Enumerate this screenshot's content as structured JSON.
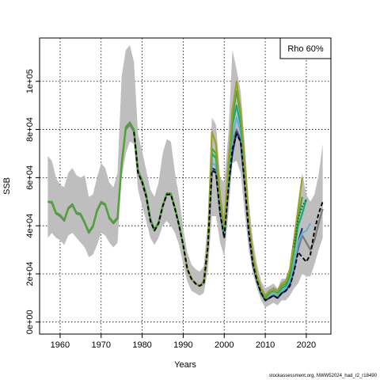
{
  "chart_data": {
    "type": "line",
    "ylabel": "SSB",
    "xlabel": "Years",
    "xlim": [
      1955,
      2026
    ],
    "ylim": [
      -5000,
      118000
    ],
    "x_ticks": [
      1960,
      1970,
      1980,
      1990,
      2000,
      2010,
      2020
    ],
    "y_ticks": [
      {
        "value": 0,
        "label": "0e+00"
      },
      {
        "value": 20000,
        "label": "2e+04"
      },
      {
        "value": 40000,
        "label": "4e+04"
      },
      {
        "value": 60000,
        "label": "6e+04"
      },
      {
        "value": 80000,
        "label": "8e+04"
      },
      {
        "value": 100000,
        "label": "1e+05"
      }
    ],
    "grid": true,
    "legend": {
      "text": "Rho 60%",
      "position": "top-right"
    },
    "confidence_band": {
      "color": "#bebebe",
      "x": [
        1957,
        1958,
        1959,
        1960,
        1961,
        1962,
        1963,
        1964,
        1965,
        1966,
        1967,
        1968,
        1969,
        1970,
        1971,
        1972,
        1973,
        1974,
        1975,
        1976,
        1977,
        1978,
        1979,
        1980,
        1981,
        1982,
        1983,
        1984,
        1985,
        1986,
        1987,
        1988,
        1989,
        1990,
        1991,
        1992,
        1993,
        1994,
        1995,
        1996,
        1997,
        1998,
        1999,
        2000,
        2001,
        2002,
        2003,
        2004,
        2005,
        2006,
        2007,
        2008,
        2009,
        2010,
        2011,
        2012,
        2013,
        2014,
        2015,
        2016,
        2017,
        2018,
        2019,
        2020,
        2021,
        2022,
        2023,
        2024
      ],
      "upper": [
        69000,
        67000,
        60000,
        57000,
        56000,
        62000,
        64000,
        61000,
        60000,
        61000,
        52000,
        53000,
        60000,
        66000,
        64000,
        58000,
        56000,
        62000,
        102000,
        113000,
        115000,
        108000,
        78000,
        71000,
        63000,
        55000,
        52000,
        58000,
        70000,
        76000,
        75000,
        62000,
        52000,
        39000,
        29000,
        24000,
        22000,
        21000,
        23000,
        42000,
        85000,
        82000,
        60000,
        58000,
        78000,
        113000,
        105000,
        96000,
        74000,
        50000,
        34000,
        24000,
        17000,
        14000,
        15000,
        16000,
        14000,
        18000,
        18000,
        23000,
        32000,
        46000,
        62000,
        53000,
        50000,
        53000,
        61000,
        74000
      ],
      "lower": [
        35000,
        37000,
        35000,
        34000,
        32000,
        36000,
        37000,
        35000,
        33000,
        31000,
        27000,
        28000,
        32000,
        37000,
        36000,
        33000,
        31000,
        33000,
        60000,
        70000,
        75000,
        74000,
        55000,
        48000,
        42000,
        35000,
        32000,
        35000,
        40000,
        42000,
        40000,
        37000,
        32000,
        24000,
        17000,
        13000,
        12000,
        11000,
        12000,
        21000,
        44000,
        44000,
        33000,
        27000,
        45000,
        66000,
        67000,
        62000,
        45000,
        30000,
        20000,
        14000,
        9000,
        6000,
        7000,
        8000,
        7000,
        9000,
        9000,
        11000,
        14000,
        16000,
        20000,
        19000,
        19000,
        24000,
        30000,
        35000
      ]
    },
    "series": [
      {
        "color": "#7a7a7a",
        "style": "solid",
        "x": [
          1957,
          1958,
          1959,
          1960,
          1961,
          1962,
          1963,
          1964,
          1965,
          1966,
          1967,
          1968,
          1969,
          1970,
          1971,
          1972,
          1973,
          1974,
          1975,
          1976,
          1977,
          1978,
          1979,
          1980,
          1981,
          1982,
          1983,
          1984,
          1985,
          1986,
          1987,
          1988,
          1989,
          1990,
          1991,
          1992,
          1993,
          1994,
          1995,
          1996,
          1997,
          1998,
          1999,
          2000,
          2001,
          2002,
          2003,
          2004,
          2005,
          2006,
          2007,
          2008,
          2009,
          2010,
          2011,
          2012,
          2013,
          2014,
          2015,
          2016,
          2017,
          2018,
          2019,
          2020,
          2021,
          2022,
          2023,
          2024
        ],
        "y": [
          50000,
          49500,
          45000,
          44000,
          42000,
          47000,
          48500,
          45000,
          44500,
          41000,
          37000,
          39500,
          46000,
          49500,
          48500,
          43000,
          41000,
          43000,
          65000,
          80000,
          82000,
          79000,
          62000,
          58000,
          52000,
          42000,
          38000,
          41000,
          48000,
          53000,
          53000,
          47000,
          40000,
          32000,
          22000,
          18000,
          16000,
          15000,
          16000,
          31000,
          63000,
          62000,
          45000,
          35000,
          55000,
          75000,
          80000,
          76000,
          57000,
          37000,
          24000,
          17000,
          12000,
          9000,
          10000,
          11000,
          10000,
          12000,
          13000,
          15000,
          21000,
          30000,
          36000,
          33000,
          30000,
          34000,
          41000,
          47000
        ]
      },
      {
        "color": "#1a2f7a",
        "style": "solid",
        "x": [
          1990,
          1991,
          1992,
          1993,
          1994,
          1995,
          1996,
          1997,
          1998,
          1999,
          2000,
          2001,
          2002,
          2003,
          2004,
          2005,
          2006,
          2007,
          2008,
          2009,
          2010,
          2011,
          2012,
          2013,
          2014,
          2015,
          2016,
          2017,
          2018,
          2019
        ],
        "y": [
          32000,
          22000,
          18000,
          16000,
          15000,
          16000,
          31000,
          64000,
          63000,
          46000,
          36000,
          57000,
          70000,
          79000,
          75000,
          58000,
          37000,
          24000,
          17000,
          12000,
          9000,
          10000,
          11000,
          10000,
          12000,
          13000,
          16000,
          23000,
          33000,
          39000
        ]
      },
      {
        "color": "#6ab0d4",
        "style": "solid",
        "x": [
          1990,
          1991,
          1992,
          1993,
          1994,
          1995,
          1996,
          1997,
          1998,
          1999,
          2000,
          2001,
          2002,
          2003,
          2004,
          2005,
          2006,
          2007,
          2008,
          2009,
          2010,
          2011,
          2012,
          2013,
          2014,
          2015,
          2016,
          2017,
          2018,
          2019,
          2020,
          2021
        ],
        "y": [
          32000,
          22000,
          18000,
          16000,
          15000,
          16000,
          31000,
          66000,
          65000,
          47000,
          37000,
          59000,
          77000,
          85000,
          79000,
          60000,
          38000,
          25000,
          18000,
          13000,
          10000,
          11000,
          12000,
          11000,
          13000,
          14000,
          17000,
          24000,
          33000,
          37000,
          38000,
          41000
        ]
      },
      {
        "color": "#1aa87a",
        "style": "solid",
        "x": [
          1990,
          1991,
          1992,
          1993,
          1994,
          1995,
          1996,
          1997,
          1998,
          1999,
          2000,
          2001,
          2002,
          2003,
          2004,
          2005,
          2006,
          2007,
          2008,
          2009,
          2010,
          2011,
          2012,
          2013,
          2014,
          2015,
          2016,
          2017,
          2018,
          2019,
          2020
        ],
        "y": [
          32000,
          22000,
          18000,
          16000,
          15000,
          17000,
          32000,
          70000,
          68000,
          49000,
          38000,
          62000,
          82000,
          90000,
          82000,
          62000,
          40000,
          26000,
          18000,
          13000,
          10000,
          12000,
          13000,
          12000,
          14000,
          15000,
          19000,
          29000,
          40000,
          45000,
          51000
        ]
      },
      {
        "color": "#4aa832",
        "style": "solid",
        "x": [
          1957,
          1958,
          1959,
          1960,
          1961,
          1962,
          1963,
          1964,
          1965,
          1966,
          1967,
          1968,
          1969,
          1970,
          1971,
          1972,
          1973,
          1974,
          1975,
          1976,
          1977,
          1978,
          1979,
          1980,
          1981,
          1982,
          1983,
          1984,
          1985,
          1986,
          1987,
          1988,
          1989,
          1990,
          1991,
          1992,
          1993,
          1994,
          1995,
          1996,
          1997,
          1998,
          1999,
          2000,
          2001,
          2002,
          2003,
          2004,
          2005,
          2006,
          2007,
          2008,
          2009,
          2010,
          2011,
          2012,
          2013,
          2014,
          2015,
          2016,
          2017,
          2018,
          2019
        ],
        "y": [
          50000,
          50000,
          45500,
          44500,
          42500,
          47500,
          49000,
          45500,
          45000,
          41500,
          37500,
          40000,
          46500,
          50000,
          49000,
          43500,
          41500,
          43500,
          66000,
          81000,
          83000,
          80000,
          63000,
          59000,
          53000,
          43000,
          38500,
          41500,
          48500,
          53500,
          53500,
          47500,
          40500,
          32000,
          22000,
          18000,
          16000,
          15000,
          17000,
          32000,
          72000,
          70000,
          50000,
          39000,
          64000,
          85000,
          96000,
          86000,
          64000,
          41000,
          27000,
          18000,
          13000,
          10000,
          12000,
          13000,
          12000,
          15000,
          16000,
          20000,
          31000,
          43000,
          52000
        ]
      },
      {
        "color": "#9aa02a",
        "style": "solid",
        "x": [
          1990,
          1991,
          1992,
          1993,
          1994,
          1995,
          1996,
          1997,
          1998,
          1999,
          2000,
          2001,
          2002,
          2003,
          2004,
          2005,
          2006,
          2007,
          2008,
          2009,
          2010,
          2011,
          2012,
          2013,
          2014,
          2015,
          2016,
          2017,
          2018,
          2019
        ],
        "y": [
          32000,
          22000,
          18000,
          16000,
          15000,
          17000,
          32000,
          79000,
          74000,
          52000,
          40000,
          66000,
          88000,
          100000,
          88000,
          66000,
          42000,
          28000,
          19000,
          14000,
          11000,
          13000,
          14000,
          13000,
          16000,
          17000,
          22000,
          34000,
          47000,
          60000
        ]
      },
      {
        "color": "#000000",
        "style": "dashed",
        "x": [
          1978,
          1979,
          1980,
          1981,
          1982,
          1983,
          1984,
          1985,
          1986,
          1987,
          1988,
          1989,
          1990,
          1991,
          1992,
          1993,
          1994,
          1995,
          1996,
          1997,
          1998,
          1999,
          2000,
          2001,
          2002,
          2003,
          2004,
          2005,
          2006,
          2007,
          2008,
          2009,
          2010,
          2011,
          2012,
          2013,
          2014,
          2015,
          2016,
          2017,
          2018,
          2019,
          2020,
          2021,
          2022,
          2023,
          2024
        ],
        "y": [
          79000,
          62000,
          58000,
          52000,
          42000,
          38000,
          41000,
          48000,
          53000,
          53000,
          47000,
          40000,
          32000,
          22000,
          18000,
          16000,
          15000,
          16000,
          31000,
          63000,
          62000,
          45000,
          35000,
          55000,
          72000,
          78000,
          75000,
          57000,
          37000,
          24000,
          17000,
          12000,
          9000,
          10000,
          11000,
          10000,
          12000,
          13000,
          15000,
          21000,
          29000,
          27000,
          25000,
          28000,
          38000,
          45000,
          50000
        ]
      },
      {
        "color": "#0a7a3a",
        "style": "dotted",
        "x": [
          2017,
          2018,
          2019,
          2020
        ],
        "y": [
          31000,
          43000,
          48000,
          51000
        ]
      }
    ]
  },
  "footer": "stockassessment.org, NWW52024_had_r2_r18490"
}
